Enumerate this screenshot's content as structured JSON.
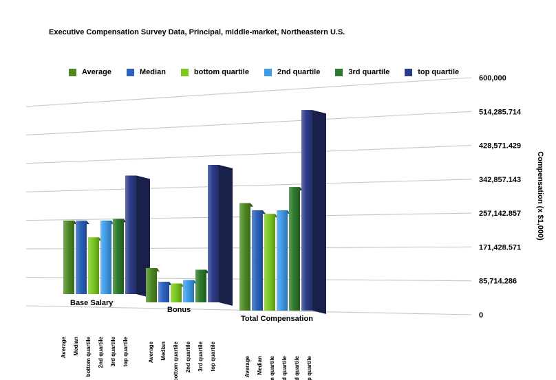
{
  "chart_data": {
    "type": "bar",
    "title": "Executive Compensation Survey Data, Principal, middle-market, Northeastern U.S.",
    "ylabel": "Compensation (x $1,000)",
    "ylim": [
      0,
      600000
    ],
    "yticks": [
      "0",
      "85,714.286",
      "171,428.571",
      "257,142.857",
      "342,857.143",
      "428,571.429",
      "514,285.714",
      "600,000"
    ],
    "grid": true,
    "legend_position": "top",
    "categories": [
      "Base Salary",
      "Bonus",
      "Total Compensation"
    ],
    "series": [
      {
        "name": "Average",
        "color": "#4e8a24",
        "values": [
          220000,
          100000,
          300000
        ]
      },
      {
        "name": "Median",
        "color": "#2a62bd",
        "values": [
          220000,
          60000,
          280000
        ]
      },
      {
        "name": "bottom quartile",
        "color": "#7bc820",
        "values": [
          170000,
          55000,
          270000
        ]
      },
      {
        "name": "2nd quartile",
        "color": "#3d9be8",
        "values": [
          220000,
          65000,
          280000
        ]
      },
      {
        "name": "3rd quartile",
        "color": "#2c7a2c",
        "values": [
          225000,
          95000,
          345000
        ]
      },
      {
        "name": "top quartile",
        "color": "#2d3c88",
        "values": [
          355000,
          400000,
          560000
        ]
      }
    ]
  }
}
